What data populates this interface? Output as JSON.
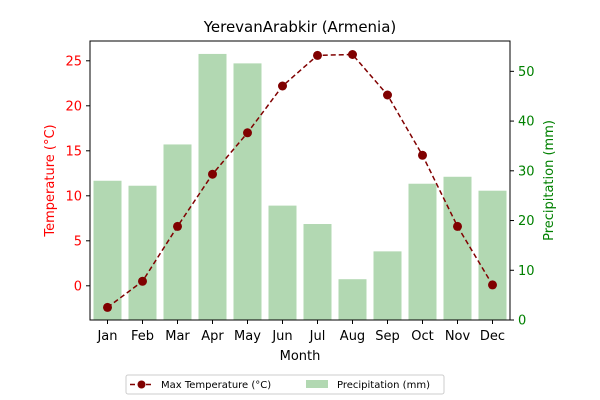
{
  "chart_data": {
    "type": "bar+line",
    "title": "YerevanArabkir (Armenia)",
    "xlabel": "Month",
    "ylabel_left": "Temperature (°C)",
    "ylabel_right": "Precipitation (mm)",
    "categories": [
      "Jan",
      "Feb",
      "Mar",
      "Apr",
      "May",
      "Jun",
      "Jul",
      "Aug",
      "Sep",
      "Oct",
      "Nov",
      "Dec"
    ],
    "y_left_lim": [
      -3.8,
      27.2
    ],
    "y_left_ticks": [
      0,
      5,
      10,
      15,
      20,
      25
    ],
    "y_right_lim": [
      0,
      56.1
    ],
    "y_right_ticks": [
      0,
      10,
      20,
      30,
      40,
      50
    ],
    "series": [
      {
        "name": "Max Temperature (°C)",
        "type": "line",
        "axis": "left",
        "color": "#800000",
        "style": "dashed",
        "marker": "circle",
        "values": [
          -2.4,
          0.5,
          6.6,
          12.4,
          17.0,
          22.2,
          25.6,
          25.7,
          21.2,
          14.5,
          6.6,
          0.1
        ]
      },
      {
        "name": "Precipitation (mm)",
        "type": "bar",
        "axis": "right",
        "color": "#b2d8b2",
        "values": [
          28.0,
          27.0,
          35.3,
          53.5,
          51.6,
          23.0,
          19.3,
          8.2,
          13.8,
          27.4,
          28.8,
          26.0
        ]
      }
    ],
    "left_axis_color": "#ff0000",
    "right_axis_color": "#008000",
    "legend_position": "bottom-center",
    "grid": false
  }
}
